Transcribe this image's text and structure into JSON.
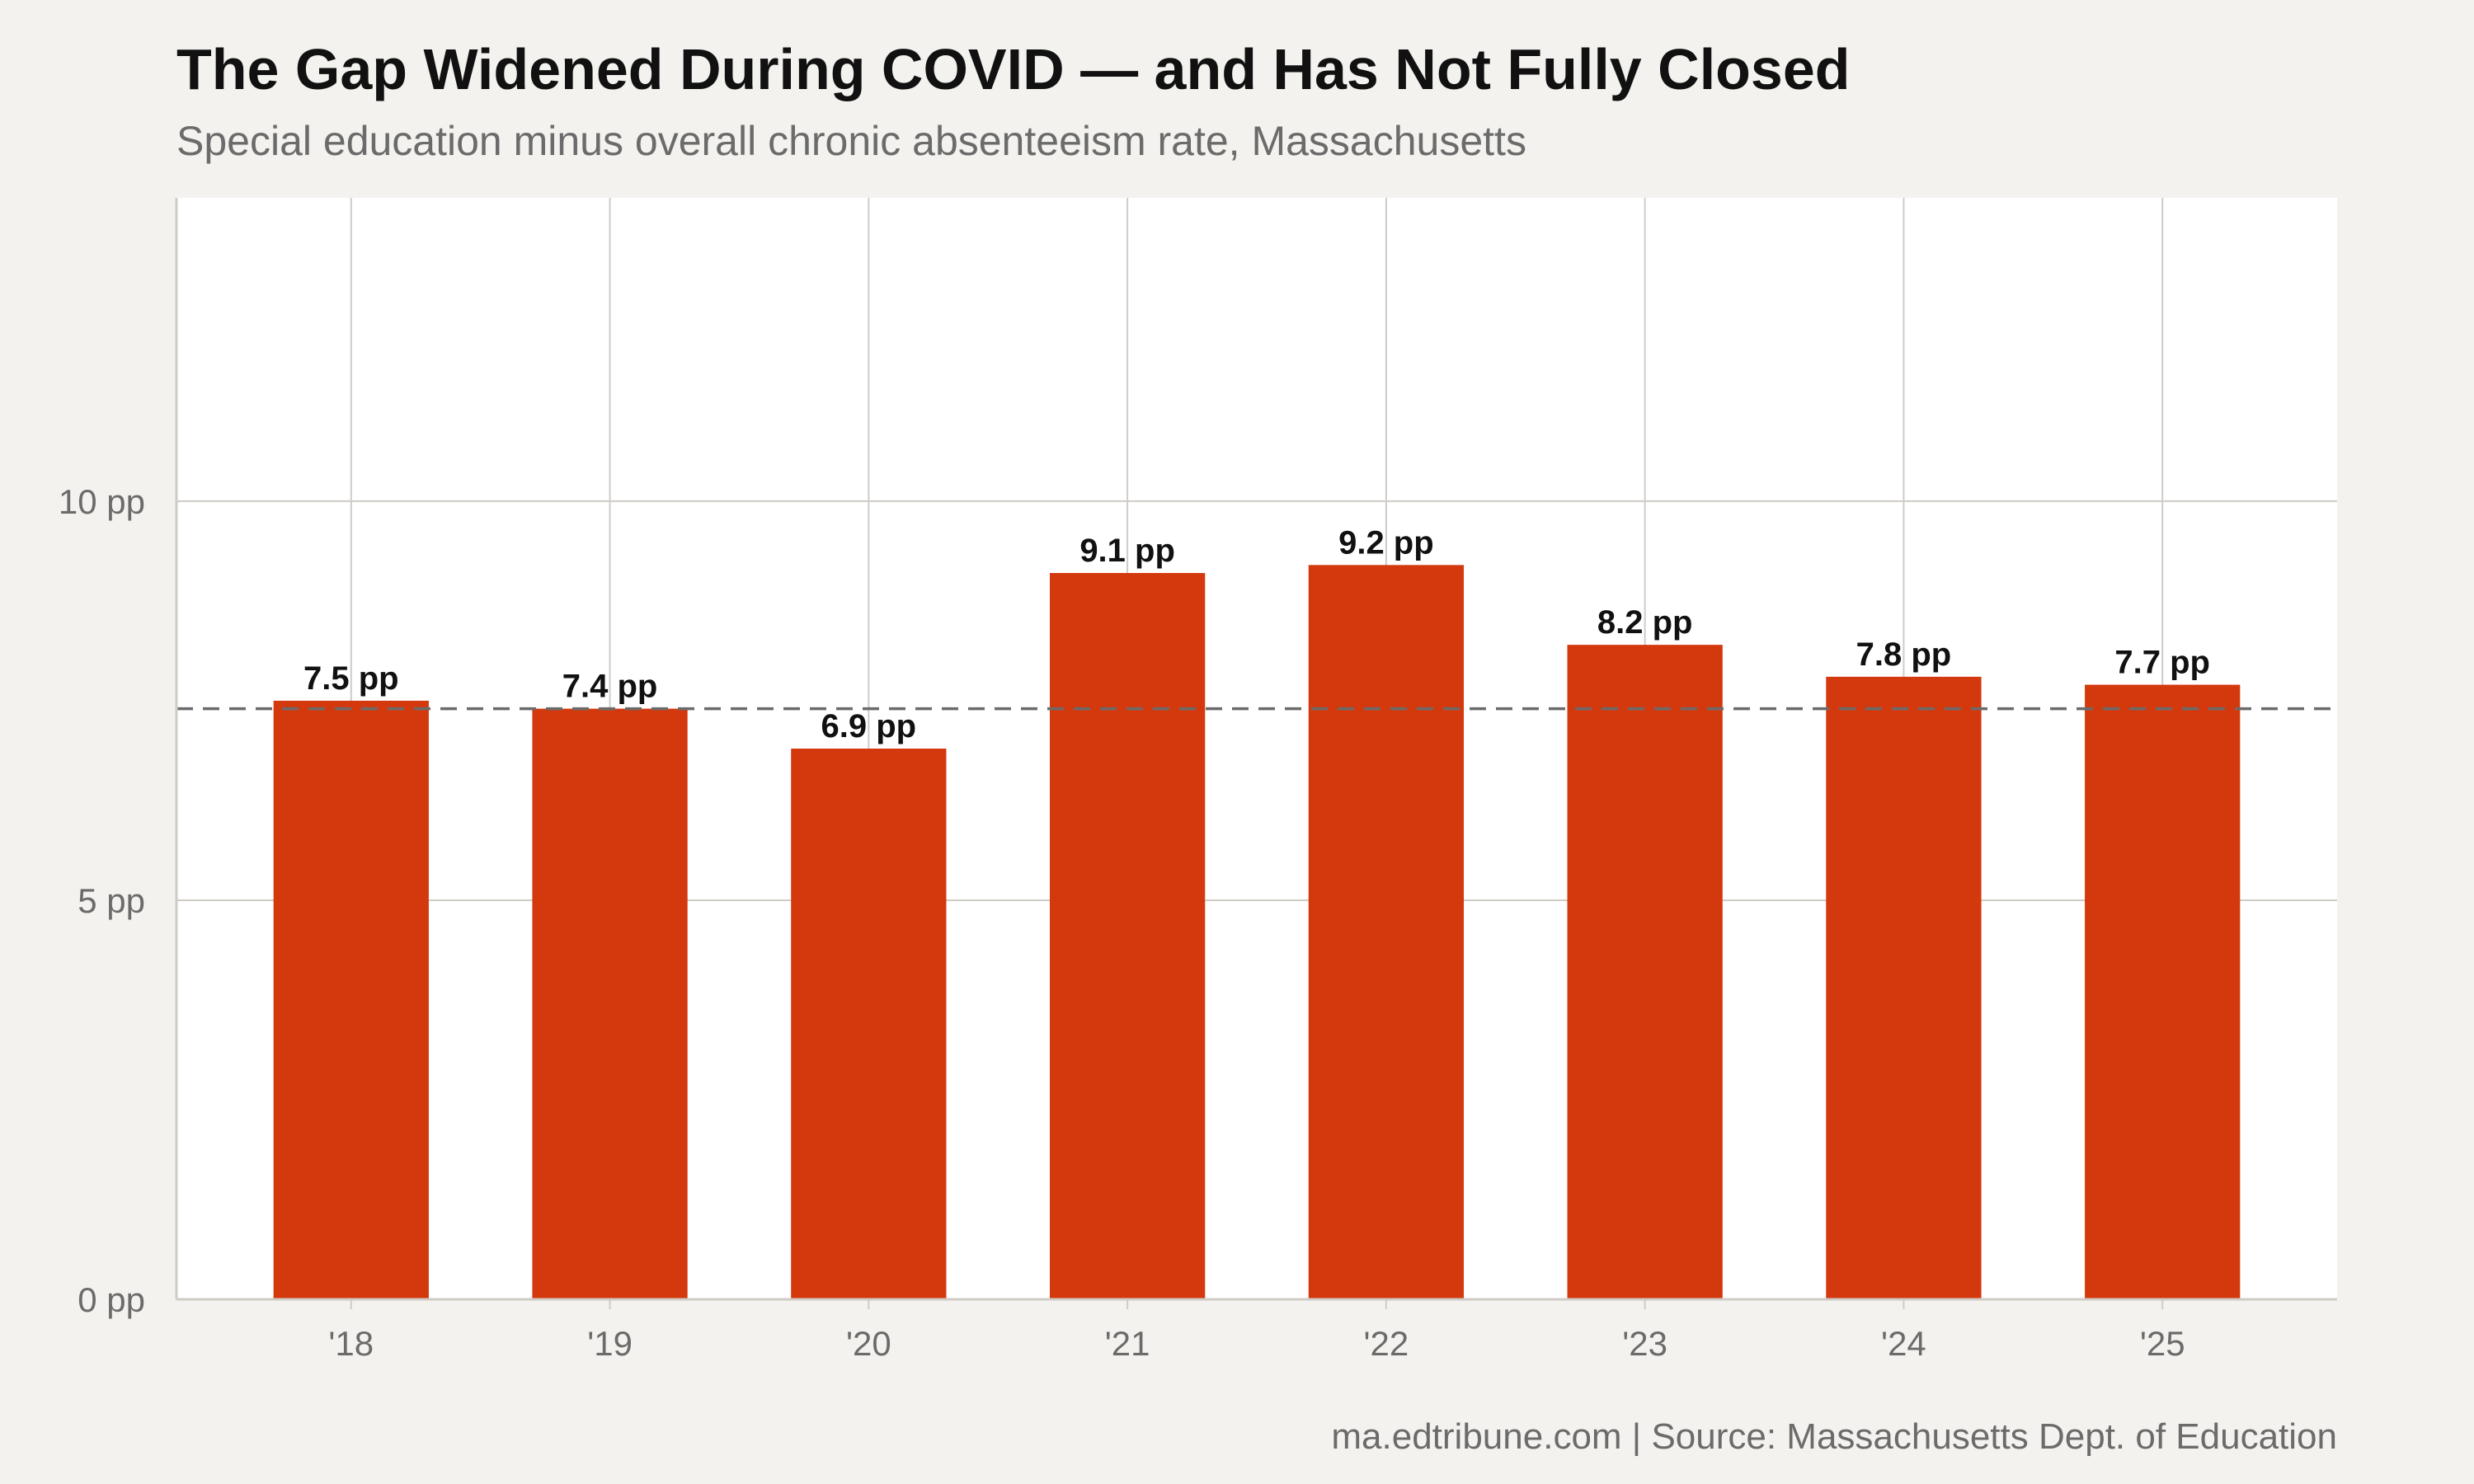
{
  "chart_data": {
    "type": "bar",
    "title": "The Gap Widened During COVID — and Has Not Fully Closed",
    "subtitle": "Special education minus overall chronic absenteeism rate, Massachusetts",
    "caption": "ma.edtribune.com | Source: Massachusetts Dept. of Education",
    "categories": [
      "'18",
      "'19",
      "'20",
      "'21",
      "'22",
      "'23",
      "'24",
      "'25"
    ],
    "values": [
      7.5,
      7.4,
      6.9,
      9.1,
      9.2,
      8.2,
      7.8,
      7.7
    ],
    "data_labels": [
      "7.5 pp",
      "7.4 pp",
      "6.9 pp",
      "9.1 pp",
      "9.2 pp",
      "8.2 pp",
      "7.8 pp",
      "7.7 pp"
    ],
    "y_ticks": [
      0,
      5,
      10
    ],
    "y_tick_labels": [
      "0 pp",
      "5 pp",
      "10 pp"
    ],
    "ylim": [
      0,
      13.8
    ],
    "reference_line": 7.4,
    "xlabel": "",
    "ylabel": "",
    "grid": true,
    "legend": "none",
    "colors": {
      "bar": "#d4380d",
      "background": "#f4f2ee",
      "plot_background": "#ffffff",
      "grid": "#cfccc5",
      "reference_line": "#6b6b6b"
    }
  }
}
